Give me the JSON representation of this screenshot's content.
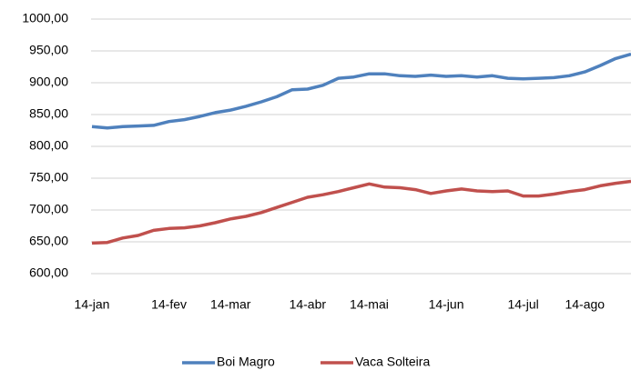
{
  "chart_data": {
    "type": "line",
    "categories": [
      "14-jan",
      null,
      null,
      null,
      null,
      "14-fev",
      null,
      null,
      null,
      "14-mar",
      null,
      null,
      null,
      null,
      "14-abr",
      null,
      null,
      null,
      "14-mai",
      null,
      null,
      null,
      null,
      "14-jun",
      null,
      null,
      null,
      null,
      "14-jul",
      null,
      null,
      null,
      "14-ago",
      null,
      null,
      null
    ],
    "series": [
      {
        "name": "Boi Magro",
        "color": "#4f81bd",
        "values": [
          831,
          829,
          831,
          832,
          833,
          839,
          842,
          847,
          853,
          857,
          863,
          870,
          878,
          889,
          890,
          896,
          907,
          909,
          914,
          914,
          911,
          910,
          912,
          910,
          911,
          909,
          911,
          907,
          906,
          907,
          908,
          911,
          917,
          927,
          938,
          945
        ]
      },
      {
        "name": "Vaca Solteira",
        "color": "#c0504d",
        "values": [
          648,
          649,
          656,
          660,
          668,
          671,
          672,
          675,
          680,
          686,
          690,
          696,
          704,
          712,
          720,
          724,
          729,
          735,
          741,
          736,
          735,
          732,
          726,
          730,
          733,
          730,
          729,
          730,
          722,
          722,
          725,
          729,
          732,
          738,
          742,
          745
        ]
      }
    ],
    "ylim": [
      600,
      1000
    ],
    "yticks": [
      {
        "value": 600,
        "label": "600,00"
      },
      {
        "value": 650,
        "label": "650,00"
      },
      {
        "value": 700,
        "label": "700,00"
      },
      {
        "value": 750,
        "label": "750,00"
      },
      {
        "value": 800,
        "label": "800,00"
      },
      {
        "value": 850,
        "label": "850,00"
      },
      {
        "value": 900,
        "label": "900,00"
      },
      {
        "value": 950,
        "label": "950,00"
      },
      {
        "value": 1000,
        "label": "1000,00"
      }
    ],
    "grid": true,
    "legend": "bottom"
  }
}
